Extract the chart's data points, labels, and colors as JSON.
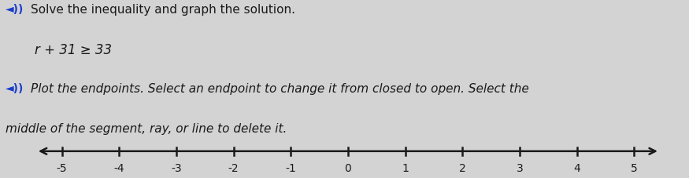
{
  "title_line1": "Solve the inequality and graph the solution.",
  "equation": "r + 31 ≥ 33",
  "instruction_line1": "Plot the endpoints. Select an endpoint to change it from closed to open. Select the",
  "instruction_line2": "middle of the segment, ray, or line to delete it.",
  "xmin": -5,
  "xmax": 5,
  "tick_positions": [
    -5,
    -4,
    -3,
    -2,
    -1,
    0,
    1,
    2,
    3,
    4,
    5
  ],
  "tick_labels": [
    "-5",
    "-4",
    "-3",
    "-2",
    "-1",
    "0",
    "1",
    "2",
    "3",
    "4",
    "5"
  ],
  "background_color": "#d3d3d3",
  "text_color": "#1a1a1a",
  "axis_color": "#1a1a1a",
  "title_color": "#1a1a1a",
  "eq_color": "#1a1a1a",
  "instr_color": "#1a1a1a",
  "speaker_color": "#1a3ccc",
  "title_fontsize": 11,
  "eq_fontsize": 12,
  "instr_fontsize": 11,
  "tick_fontsize": 10
}
